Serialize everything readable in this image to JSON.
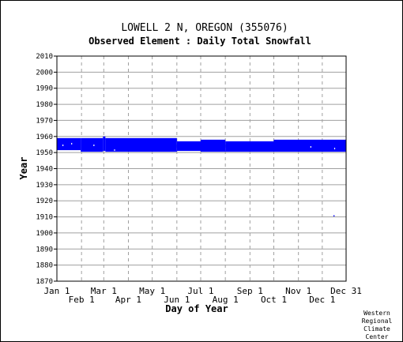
{
  "chart_data": {
    "type": "bar",
    "title": "LOWELL 2 N, OREGON   (355076)",
    "subtitle": "Observed Element : Daily Total Snowfall",
    "xlabel": "Day of Year",
    "ylabel": "Year",
    "ylim": [
      1870,
      2010
    ],
    "y_ticks": [
      1870,
      1880,
      1890,
      1900,
      1910,
      1920,
      1930,
      1940,
      1950,
      1960,
      1970,
      1980,
      1990,
      2000,
      2010
    ],
    "x_range_days": [
      1,
      365
    ],
    "x_ticks_upper": [
      {
        "label": "Jan 1",
        "day": 1
      },
      {
        "label": "Mar 1",
        "day": 60
      },
      {
        "label": "May 1",
        "day": 121
      },
      {
        "label": "Jul 1",
        "day": 182
      },
      {
        "label": "Sep 1",
        "day": 244
      },
      {
        "label": "Nov 1",
        "day": 305
      },
      {
        "label": "Dec 31",
        "day": 365
      }
    ],
    "x_ticks_lower": [
      {
        "label": "Feb 1",
        "day": 32
      },
      {
        "label": "Apr 1",
        "day": 91
      },
      {
        "label": "Jun 1",
        "day": 152
      },
      {
        "label": "Aug 1",
        "day": 213
      },
      {
        "label": "Oct 1",
        "day": 274
      },
      {
        "label": "Dec 1",
        "day": 335
      }
    ],
    "grid": true,
    "series_color": "#0000ff",
    "coverage_blocks": [
      {
        "day_start": 1,
        "day_end": 31,
        "year_start": 1951.5,
        "year_end": 1959
      },
      {
        "day_start": 31,
        "day_end": 59,
        "year_start": 1950.5,
        "year_end": 1959
      },
      {
        "day_start": 59,
        "day_end": 62,
        "year_start": 1951,
        "year_end": 1960
      },
      {
        "day_start": 62,
        "day_end": 152,
        "year_start": 1950.5,
        "year_end": 1959
      },
      {
        "day_start": 152,
        "day_end": 182,
        "year_start": 1951,
        "year_end": 1957
      },
      {
        "day_start": 182,
        "day_end": 213,
        "year_start": 1950.5,
        "year_end": 1958
      },
      {
        "day_start": 213,
        "day_end": 274,
        "year_start": 1950.5,
        "year_end": 1957
      },
      {
        "day_start": 274,
        "day_end": 365,
        "year_start": 1950.5,
        "year_end": 1958
      }
    ],
    "gaps": [
      {
        "day_start": 8,
        "day_end": 9,
        "year_start": 1954,
        "year_end": 1955
      },
      {
        "day_start": 19,
        "day_end": 20,
        "year_start": 1955,
        "year_end": 1956
      },
      {
        "day_start": 47,
        "day_end": 48,
        "year_start": 1954,
        "year_end": 1955
      },
      {
        "day_start": 73,
        "day_end": 74,
        "year_start": 1951,
        "year_end": 1952
      },
      {
        "day_start": 320,
        "day_end": 321,
        "year_start": 1953,
        "year_end": 1954
      },
      {
        "day_start": 350,
        "day_end": 351,
        "year_start": 1952,
        "year_end": 1953
      }
    ],
    "isolated_points": [
      {
        "day": 349,
        "year": 1910.5
      }
    ]
  },
  "footer": {
    "credit_lines": [
      "Western",
      "Regional",
      "Climate",
      "Center"
    ]
  }
}
